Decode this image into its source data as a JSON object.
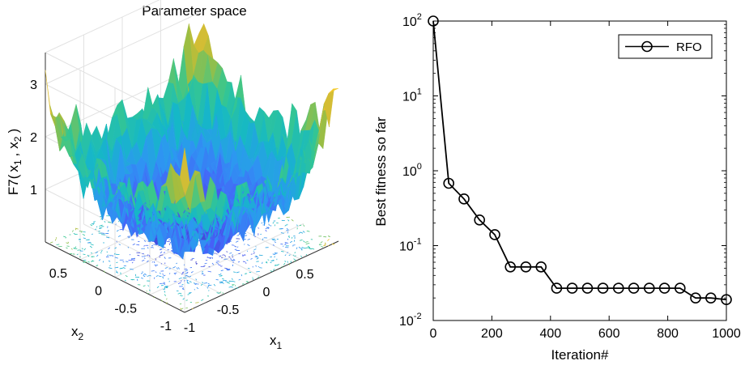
{
  "chart_data": [
    {
      "type": "surface",
      "title": "Parameter space",
      "zlabel_parts": [
        "F7(",
        "x",
        "1",
        ",",
        "x",
        "2",
        ")"
      ],
      "xlabel_base": "x",
      "xlabel_sub": "1",
      "ylabel_base": "x",
      "ylabel_sub": "2",
      "x_ticks": [
        "-1",
        "-0.5",
        "0",
        "0.5"
      ],
      "y_ticks": [
        "-1",
        "-0.5",
        "0",
        "0.5"
      ],
      "z_ticks": [
        "1",
        "2",
        "3"
      ],
      "x_range": [
        -1,
        1
      ],
      "y_range": [
        -1,
        1
      ],
      "z_range": [
        0,
        3.5
      ],
      "colormap": [
        "#3e26a8",
        "#4662f8",
        "#2d97f2",
        "#15b8c6",
        "#37c78e",
        "#a3bd3e",
        "#f1bd2e",
        "#f9e81e"
      ],
      "grid": true,
      "contour_floor": true
    },
    {
      "type": "line",
      "title": "",
      "xlabel": "Iteration#",
      "ylabel": "Best fitness so far",
      "yscale": "log",
      "xlim": [
        0,
        1000
      ],
      "ylim": [
        0.01,
        100
      ],
      "x_ticks": [
        "0",
        "200",
        "400",
        "600",
        "800",
        "1000"
      ],
      "y_tick_base": "10",
      "y_tick_exponents": [
        "2",
        "1",
        "0",
        "-1",
        "-2"
      ],
      "legend_position": "top-right",
      "series": [
        {
          "name": "RFO",
          "color": "#000000",
          "marker": "circle",
          "x": [
            0,
            53,
            105,
            158,
            210,
            263,
            316,
            368,
            421,
            474,
            526,
            579,
            632,
            684,
            737,
            789,
            842,
            895,
            947,
            1000
          ],
          "y": [
            100,
            0.68,
            0.42,
            0.22,
            0.14,
            0.052,
            0.052,
            0.052,
            0.027,
            0.027,
            0.027,
            0.027,
            0.027,
            0.027,
            0.027,
            0.027,
            0.027,
            0.02,
            0.02,
            0.019
          ]
        }
      ]
    }
  ]
}
